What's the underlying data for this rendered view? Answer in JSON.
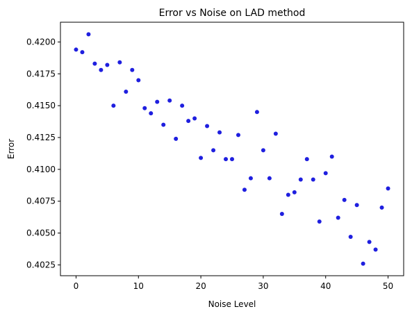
{
  "chart_data": {
    "type": "scatter",
    "title": "Error vs Noise on LAD method",
    "xlabel": "Noise Level",
    "ylabel": "Error",
    "xlim": [
      -2.5,
      52.5
    ],
    "ylim": [
      0.40165,
      0.42155
    ],
    "xticks": [
      0,
      10,
      20,
      30,
      40,
      50
    ],
    "yticks": [
      0.4025,
      0.405,
      0.4075,
      0.41,
      0.4125,
      0.415,
      0.4175,
      0.42
    ],
    "xtick_labels": [
      "0",
      "10",
      "20",
      "30",
      "40",
      "50"
    ],
    "ytick_labels": [
      "0.4025",
      "0.4050",
      "0.4075",
      "0.4100",
      "0.4125",
      "0.4150",
      "0.4175",
      "0.4200"
    ],
    "grid": false,
    "marker_color": "#1f1fdf",
    "x": [
      0,
      1,
      2,
      3,
      4,
      5,
      6,
      7,
      8,
      9,
      10,
      11,
      12,
      13,
      14,
      15,
      16,
      17,
      18,
      19,
      20,
      21,
      22,
      23,
      24,
      25,
      26,
      27,
      28,
      29,
      30,
      31,
      32,
      33,
      34,
      35,
      36,
      37,
      38,
      39,
      40,
      41,
      42,
      43,
      44,
      45,
      46,
      47,
      48,
      49,
      50
    ],
    "y": [
      0.4194,
      0.4192,
      0.4206,
      0.4183,
      0.4178,
      0.4182,
      0.415,
      0.4184,
      0.4161,
      0.4178,
      0.417,
      0.4148,
      0.4144,
      0.4153,
      0.4135,
      0.4154,
      0.4124,
      0.415,
      0.4138,
      0.414,
      0.4109,
      0.4134,
      0.4115,
      0.4129,
      0.4108,
      0.4108,
      0.4127,
      0.4084,
      0.4093,
      0.4145,
      0.4115,
      0.4093,
      0.4128,
      0.4065,
      0.408,
      0.4082,
      0.4092,
      0.4108,
      0.4092,
      0.4059,
      0.4097,
      0.411,
      0.4062,
      0.4076,
      0.4047,
      0.4072,
      0.4026,
      0.4043,
      0.4037,
      0.407,
      0.4085
    ]
  }
}
